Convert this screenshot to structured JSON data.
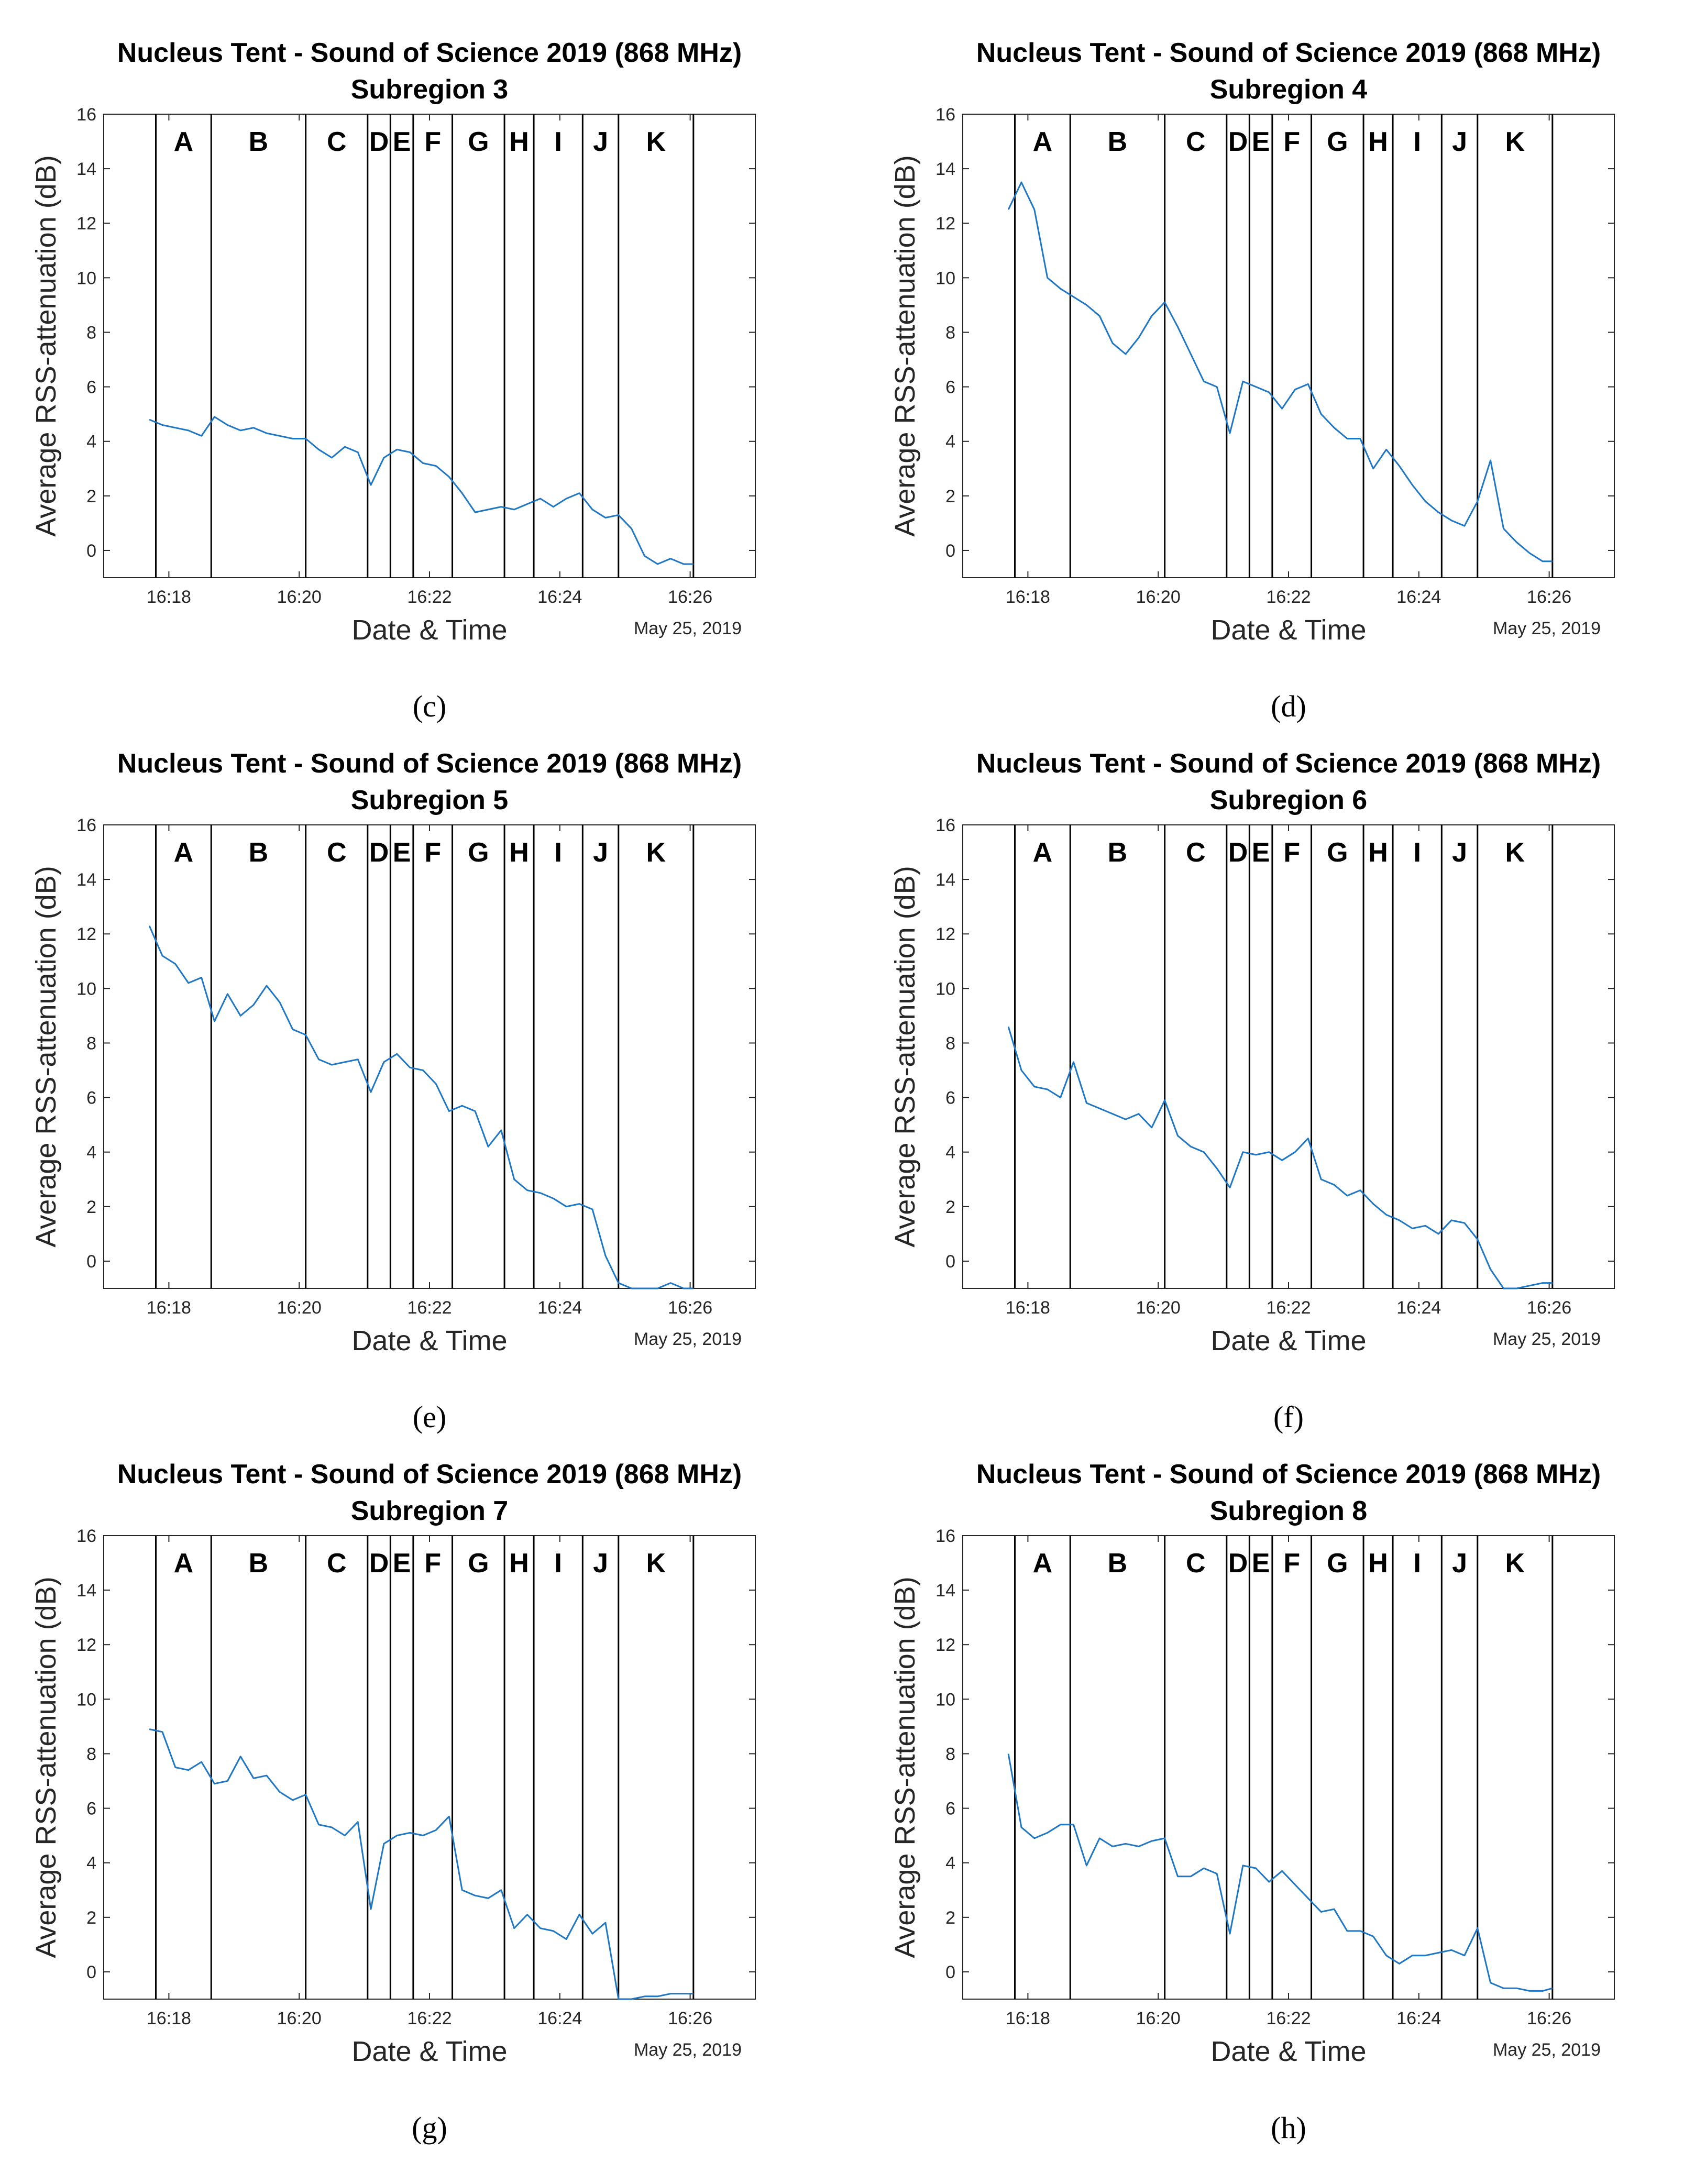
{
  "figure": {
    "title_line1": "Nucleus Tent - Sound of Science 2019 (868 MHz)",
    "date_label": "May 25, 2019"
  },
  "chart_data": [
    {
      "type": "line",
      "caption": "(c)",
      "title": "Nucleus Tent - Sound of Science 2019 (868 MHz)",
      "subtitle": "Subregion 3",
      "xlabel": "Date & Time",
      "ylabel": "Average RSS-attenuation (dB)",
      "date_label": "May 25, 2019",
      "xlim": [
        "16:17:00",
        "16:27:00"
      ],
      "ylim": [
        -1,
        16
      ],
      "x_ticks": [
        "16:18",
        "16:20",
        "16:22",
        "16:24",
        "16:26"
      ],
      "y_ticks": [
        0,
        2,
        4,
        6,
        8,
        10,
        12,
        14,
        16
      ],
      "phase_labels": [
        "A",
        "B",
        "C",
        "D",
        "E",
        "F",
        "G",
        "H",
        "I",
        "J",
        "K"
      ],
      "phase_boundaries_min": [
        0.8,
        1.65,
        3.1,
        4.05,
        4.4,
        4.75,
        5.35,
        6.15,
        6.6,
        7.35,
        7.9,
        9.05
      ],
      "series": [
        {
          "name": "Subregion 3",
          "x_min": [
            0.7,
            0.9,
            1.1,
            1.3,
            1.5,
            1.7,
            1.9,
            2.1,
            2.3,
            2.5,
            2.7,
            2.9,
            3.1,
            3.3,
            3.5,
            3.7,
            3.9,
            4.1,
            4.3,
            4.5,
            4.7,
            4.9,
            5.1,
            5.3,
            5.5,
            5.7,
            5.9,
            6.1,
            6.3,
            6.5,
            6.7,
            6.9,
            7.1,
            7.3,
            7.5,
            7.7,
            7.9,
            8.1,
            8.3,
            8.5,
            8.7,
            8.9,
            9.05
          ],
          "values": [
            4.8,
            4.6,
            4.5,
            4.4,
            4.2,
            4.9,
            4.6,
            4.4,
            4.5,
            4.3,
            4.2,
            4.1,
            4.1,
            3.7,
            3.4,
            3.8,
            3.6,
            2.4,
            3.4,
            3.7,
            3.6,
            3.2,
            3.1,
            2.7,
            2.1,
            1.4,
            1.5,
            1.6,
            1.5,
            1.7,
            1.9,
            1.6,
            1.9,
            2.1,
            1.5,
            1.2,
            1.3,
            0.8,
            -0.2,
            -0.5,
            -0.3,
            -0.5,
            -0.5
          ]
        }
      ]
    },
    {
      "type": "line",
      "caption": "(d)",
      "title": "Nucleus Tent - Sound of Science 2019 (868 MHz)",
      "subtitle": "Subregion 4",
      "xlabel": "Date & Time",
      "ylabel": "Average RSS-attenuation (dB)",
      "date_label": "May 25, 2019",
      "xlim": [
        "16:17:00",
        "16:27:00"
      ],
      "ylim": [
        -1,
        16
      ],
      "x_ticks": [
        "16:18",
        "16:20",
        "16:22",
        "16:24",
        "16:26"
      ],
      "y_ticks": [
        0,
        2,
        4,
        6,
        8,
        10,
        12,
        14,
        16
      ],
      "phase_labels": [
        "A",
        "B",
        "C",
        "D",
        "E",
        "F",
        "G",
        "H",
        "I",
        "J",
        "K"
      ],
      "phase_boundaries_min": [
        0.8,
        1.65,
        3.1,
        4.05,
        4.4,
        4.75,
        5.35,
        6.15,
        6.6,
        7.35,
        7.9,
        9.05
      ],
      "series": [
        {
          "name": "Subregion 4",
          "x_min": [
            0.7,
            0.9,
            1.1,
            1.3,
            1.5,
            1.7,
            1.9,
            2.1,
            2.3,
            2.5,
            2.7,
            2.9,
            3.1,
            3.3,
            3.5,
            3.7,
            3.9,
            4.1,
            4.3,
            4.5,
            4.7,
            4.9,
            5.1,
            5.3,
            5.5,
            5.7,
            5.9,
            6.1,
            6.3,
            6.5,
            6.7,
            6.9,
            7.1,
            7.3,
            7.5,
            7.7,
            7.9,
            8.1,
            8.3,
            8.5,
            8.7,
            8.9,
            9.05
          ],
          "values": [
            12.5,
            13.5,
            12.5,
            10.0,
            9.6,
            9.3,
            9.0,
            8.6,
            7.6,
            7.2,
            7.8,
            8.6,
            9.1,
            8.2,
            7.2,
            6.2,
            6.0,
            4.3,
            6.2,
            6.0,
            5.8,
            5.2,
            5.9,
            6.1,
            5.0,
            4.5,
            4.1,
            4.1,
            3.0,
            3.7,
            3.1,
            2.4,
            1.8,
            1.4,
            1.1,
            0.9,
            1.8,
            3.3,
            0.8,
            0.3,
            -0.1,
            -0.4,
            -0.4
          ]
        }
      ]
    },
    {
      "type": "line",
      "caption": "(e)",
      "title": "Nucleus Tent - Sound of Science 2019 (868 MHz)",
      "subtitle": "Subregion 5",
      "xlabel": "Date & Time",
      "ylabel": "Average RSS-attenuation (dB)",
      "date_label": "May 25, 2019",
      "xlim": [
        "16:17:00",
        "16:27:00"
      ],
      "ylim": [
        -1,
        16
      ],
      "x_ticks": [
        "16:18",
        "16:20",
        "16:22",
        "16:24",
        "16:26"
      ],
      "y_ticks": [
        0,
        2,
        4,
        6,
        8,
        10,
        12,
        14,
        16
      ],
      "phase_labels": [
        "A",
        "B",
        "C",
        "D",
        "E",
        "F",
        "G",
        "H",
        "I",
        "J",
        "K"
      ],
      "phase_boundaries_min": [
        0.8,
        1.65,
        3.1,
        4.05,
        4.4,
        4.75,
        5.35,
        6.15,
        6.6,
        7.35,
        7.9,
        9.05
      ],
      "series": [
        {
          "name": "Subregion 5",
          "x_min": [
            0.7,
            0.9,
            1.1,
            1.3,
            1.5,
            1.7,
            1.9,
            2.1,
            2.3,
            2.5,
            2.7,
            2.9,
            3.1,
            3.3,
            3.5,
            3.7,
            3.9,
            4.1,
            4.3,
            4.5,
            4.7,
            4.9,
            5.1,
            5.3,
            5.5,
            5.7,
            5.9,
            6.1,
            6.3,
            6.5,
            6.7,
            6.9,
            7.1,
            7.3,
            7.5,
            7.7,
            7.9,
            8.1,
            8.3,
            8.5,
            8.7,
            8.9,
            9.05
          ],
          "values": [
            12.3,
            11.2,
            10.9,
            10.2,
            10.4,
            8.8,
            9.8,
            9.0,
            9.4,
            10.1,
            9.5,
            8.5,
            8.3,
            7.4,
            7.2,
            7.3,
            7.4,
            6.2,
            7.3,
            7.6,
            7.1,
            7.0,
            6.5,
            5.5,
            5.7,
            5.5,
            4.2,
            4.8,
            3.0,
            2.6,
            2.5,
            2.3,
            2.0,
            2.1,
            1.9,
            0.2,
            -0.8,
            -1.0,
            -1.0,
            -1.0,
            -0.8,
            -1.0,
            -1.0
          ]
        }
      ]
    },
    {
      "type": "line",
      "caption": "(f)",
      "title": "Nucleus Tent - Sound of Science 2019 (868 MHz)",
      "subtitle": "Subregion 6",
      "xlabel": "Date & Time",
      "ylabel": "Average RSS-attenuation (dB)",
      "date_label": "May 25, 2019",
      "xlim": [
        "16:17:00",
        "16:27:00"
      ],
      "ylim": [
        -1,
        16
      ],
      "x_ticks": [
        "16:18",
        "16:20",
        "16:22",
        "16:24",
        "16:26"
      ],
      "y_ticks": [
        0,
        2,
        4,
        6,
        8,
        10,
        12,
        14,
        16
      ],
      "phase_labels": [
        "A",
        "B",
        "C",
        "D",
        "E",
        "F",
        "G",
        "H",
        "I",
        "J",
        "K"
      ],
      "phase_boundaries_min": [
        0.8,
        1.65,
        3.1,
        4.05,
        4.4,
        4.75,
        5.35,
        6.15,
        6.6,
        7.35,
        7.9,
        9.05
      ],
      "series": [
        {
          "name": "Subregion 6",
          "x_min": [
            0.7,
            0.9,
            1.1,
            1.3,
            1.5,
            1.7,
            1.9,
            2.1,
            2.3,
            2.5,
            2.7,
            2.9,
            3.1,
            3.3,
            3.5,
            3.7,
            3.9,
            4.1,
            4.3,
            4.5,
            4.7,
            4.9,
            5.1,
            5.3,
            5.5,
            5.7,
            5.9,
            6.1,
            6.3,
            6.5,
            6.7,
            6.9,
            7.1,
            7.3,
            7.5,
            7.7,
            7.9,
            8.1,
            8.3,
            8.5,
            8.7,
            8.9,
            9.05
          ],
          "values": [
            8.6,
            7.0,
            6.4,
            6.3,
            6.0,
            7.3,
            5.8,
            5.6,
            5.4,
            5.2,
            5.4,
            4.9,
            5.9,
            4.6,
            4.2,
            4.0,
            3.4,
            2.7,
            4.0,
            3.9,
            4.0,
            3.7,
            4.0,
            4.5,
            3.0,
            2.8,
            2.4,
            2.6,
            2.1,
            1.7,
            1.5,
            1.2,
            1.3,
            1.0,
            1.5,
            1.4,
            0.8,
            -0.3,
            -1.0,
            -1.0,
            -0.9,
            -0.8,
            -0.8
          ]
        }
      ]
    },
    {
      "type": "line",
      "caption": "(g)",
      "title": "Nucleus Tent - Sound of Science 2019 (868 MHz)",
      "subtitle": "Subregion 7",
      "xlabel": "Date & Time",
      "ylabel": "Average RSS-attenuation (dB)",
      "date_label": "May 25, 2019",
      "xlim": [
        "16:17:00",
        "16:27:00"
      ],
      "ylim": [
        -1,
        16
      ],
      "x_ticks": [
        "16:18",
        "16:20",
        "16:22",
        "16:24",
        "16:26"
      ],
      "y_ticks": [
        0,
        2,
        4,
        6,
        8,
        10,
        12,
        14,
        16
      ],
      "phase_labels": [
        "A",
        "B",
        "C",
        "D",
        "E",
        "F",
        "G",
        "H",
        "I",
        "J",
        "K"
      ],
      "phase_boundaries_min": [
        0.8,
        1.65,
        3.1,
        4.05,
        4.4,
        4.75,
        5.35,
        6.15,
        6.6,
        7.35,
        7.9,
        9.05
      ],
      "series": [
        {
          "name": "Subregion 7",
          "x_min": [
            0.7,
            0.9,
            1.1,
            1.3,
            1.5,
            1.7,
            1.9,
            2.1,
            2.3,
            2.5,
            2.7,
            2.9,
            3.1,
            3.3,
            3.5,
            3.7,
            3.9,
            4.1,
            4.3,
            4.5,
            4.7,
            4.9,
            5.1,
            5.3,
            5.5,
            5.7,
            5.9,
            6.1,
            6.3,
            6.5,
            6.7,
            6.9,
            7.1,
            7.3,
            7.5,
            7.7,
            7.9,
            8.1,
            8.3,
            8.5,
            8.7,
            8.9,
            9.05
          ],
          "values": [
            8.9,
            8.8,
            7.5,
            7.4,
            7.7,
            6.9,
            7.0,
            7.9,
            7.1,
            7.2,
            6.6,
            6.3,
            6.5,
            5.4,
            5.3,
            5.0,
            5.5,
            2.3,
            4.7,
            5.0,
            5.1,
            5.0,
            5.2,
            5.7,
            3.0,
            2.8,
            2.7,
            3.0,
            1.6,
            2.1,
            1.6,
            1.5,
            1.2,
            2.1,
            1.4,
            1.8,
            -1.0,
            -1.0,
            -0.9,
            -0.9,
            -0.8,
            -0.8,
            -0.8
          ]
        }
      ]
    },
    {
      "type": "line",
      "caption": "(h)",
      "title": "Nucleus Tent - Sound of Science 2019 (868 MHz)",
      "subtitle": "Subregion 8",
      "xlabel": "Date & Time",
      "ylabel": "Average RSS-attenuation (dB)",
      "date_label": "May 25, 2019",
      "xlim": [
        "16:17:00",
        "16:27:00"
      ],
      "ylim": [
        -1,
        16
      ],
      "x_ticks": [
        "16:18",
        "16:20",
        "16:22",
        "16:24",
        "16:26"
      ],
      "y_ticks": [
        0,
        2,
        4,
        6,
        8,
        10,
        12,
        14,
        16
      ],
      "phase_labels": [
        "A",
        "B",
        "C",
        "D",
        "E",
        "F",
        "G",
        "H",
        "I",
        "J",
        "K"
      ],
      "phase_boundaries_min": [
        0.8,
        1.65,
        3.1,
        4.05,
        4.4,
        4.75,
        5.35,
        6.15,
        6.6,
        7.35,
        7.9,
        9.05
      ],
      "series": [
        {
          "name": "Subregion 8",
          "x_min": [
            0.7,
            0.9,
            1.1,
            1.3,
            1.5,
            1.7,
            1.9,
            2.1,
            2.3,
            2.5,
            2.7,
            2.9,
            3.1,
            3.3,
            3.5,
            3.7,
            3.9,
            4.1,
            4.3,
            4.5,
            4.7,
            4.9,
            5.1,
            5.3,
            5.5,
            5.7,
            5.9,
            6.1,
            6.3,
            6.5,
            6.7,
            6.9,
            7.1,
            7.3,
            7.5,
            7.7,
            7.9,
            8.1,
            8.3,
            8.5,
            8.7,
            8.9,
            9.05
          ],
          "values": [
            8.0,
            5.3,
            4.9,
            5.1,
            5.4,
            5.4,
            3.9,
            4.9,
            4.6,
            4.7,
            4.6,
            4.8,
            4.9,
            3.5,
            3.5,
            3.8,
            3.6,
            1.4,
            3.9,
            3.8,
            3.3,
            3.7,
            3.2,
            2.7,
            2.2,
            2.3,
            1.5,
            1.5,
            1.3,
            0.6,
            0.3,
            0.6,
            0.6,
            0.7,
            0.8,
            0.6,
            1.6,
            -0.4,
            -0.6,
            -0.6,
            -0.7,
            -0.7,
            -0.6
          ]
        }
      ]
    }
  ]
}
